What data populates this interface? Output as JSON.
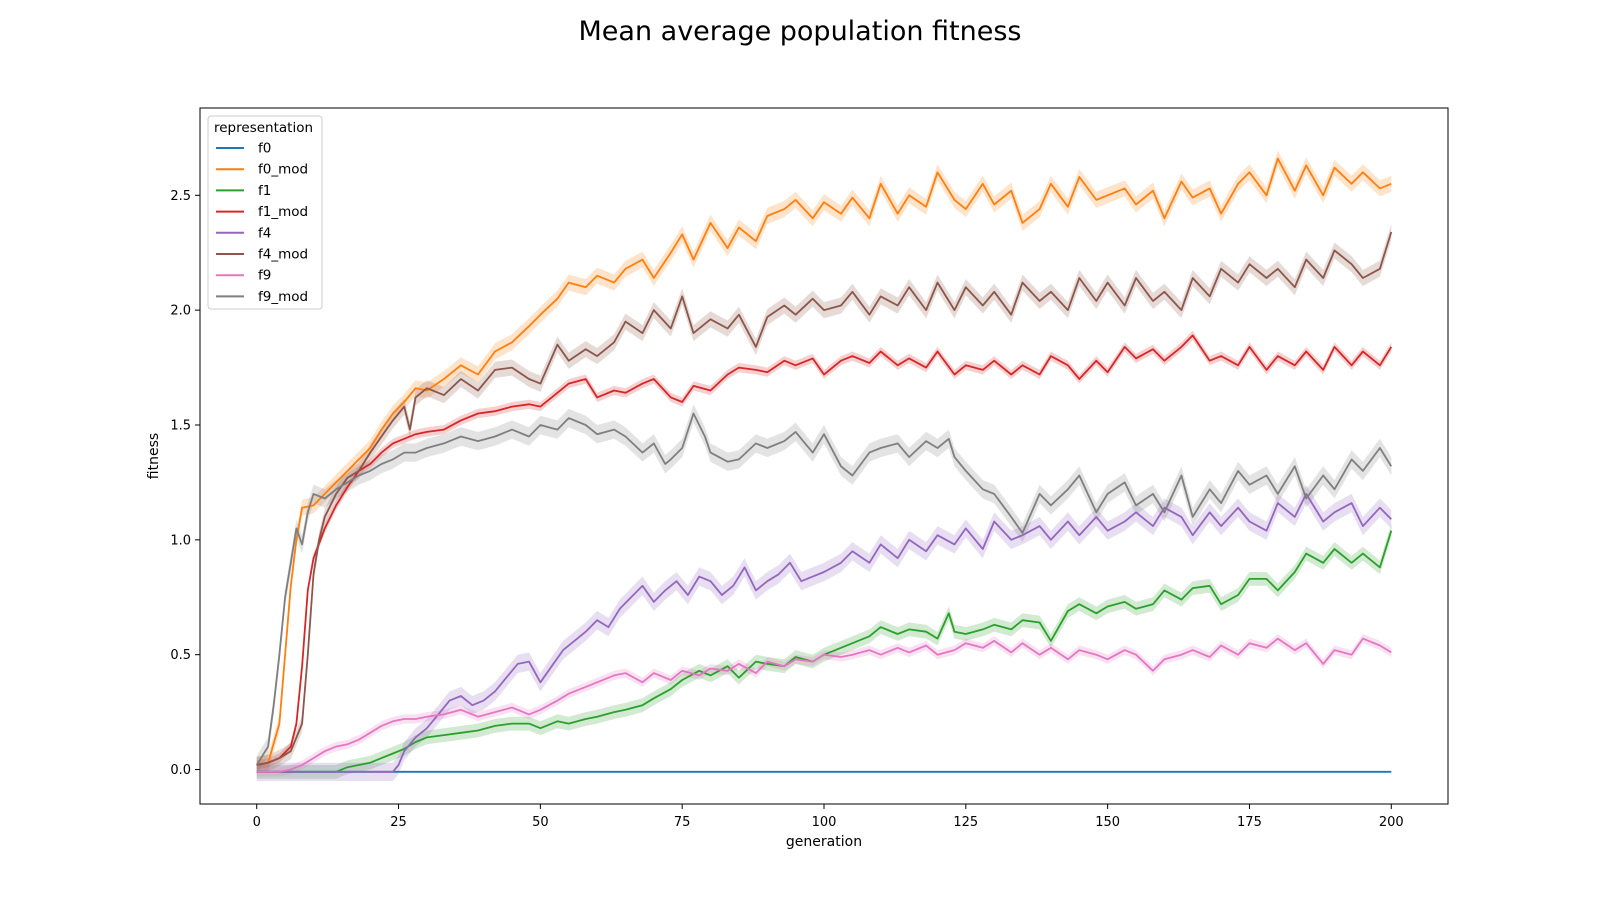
{
  "chart_data": {
    "type": "line",
    "title": "Mean average population fitness",
    "xlabel": "generation",
    "ylabel": "fitness",
    "xlim": [
      -10,
      210
    ],
    "ylim": [
      -0.15,
      2.88
    ],
    "xticks": [
      0,
      25,
      50,
      75,
      100,
      125,
      150,
      175,
      200
    ],
    "yticks": [
      0.0,
      0.5,
      1.0,
      1.5,
      2.0,
      2.5
    ],
    "xtick_labels": [
      "0",
      "25",
      "50",
      "75",
      "100",
      "125",
      "150",
      "175",
      "200"
    ],
    "ytick_labels": [
      "0.0",
      "0.5",
      "1.0",
      "1.5",
      "2.0",
      "2.5"
    ],
    "grid": false,
    "legend": {
      "title": "representation",
      "placement": "top-left"
    },
    "series": [
      {
        "name": "f0",
        "color": "#1f77b4",
        "band": 0.0,
        "x": [
          0,
          200
        ],
        "y": [
          -0.01,
          -0.01
        ]
      },
      {
        "name": "f0_mod",
        "color": "#ff7f0e",
        "band": 0.035,
        "x": [
          0,
          2,
          4,
          6,
          7,
          8,
          10,
          12,
          14,
          16,
          18,
          20,
          22,
          24,
          26,
          28,
          30,
          33,
          36,
          39,
          42,
          45,
          48,
          50,
          53,
          55,
          58,
          60,
          63,
          65,
          68,
          70,
          73,
          75,
          77,
          80,
          83,
          85,
          88,
          90,
          93,
          95,
          98,
          100,
          103,
          105,
          108,
          110,
          113,
          115,
          118,
          120,
          123,
          125,
          128,
          130,
          133,
          135,
          138,
          140,
          143,
          145,
          148,
          150,
          153,
          155,
          158,
          160,
          163,
          165,
          168,
          170,
          173,
          175,
          178,
          180,
          183,
          185,
          188,
          190,
          193,
          195,
          198,
          200
        ],
        "y": [
          0.02,
          0.03,
          0.2,
          0.8,
          1.0,
          1.14,
          1.15,
          1.2,
          1.25,
          1.3,
          1.35,
          1.4,
          1.48,
          1.55,
          1.6,
          1.66,
          1.65,
          1.7,
          1.76,
          1.72,
          1.82,
          1.86,
          1.93,
          1.98,
          2.05,
          2.12,
          2.1,
          2.15,
          2.12,
          2.18,
          2.22,
          2.14,
          2.25,
          2.33,
          2.22,
          2.38,
          2.27,
          2.36,
          2.3,
          2.41,
          2.44,
          2.48,
          2.4,
          2.47,
          2.42,
          2.49,
          2.4,
          2.55,
          2.42,
          2.5,
          2.45,
          2.6,
          2.48,
          2.44,
          2.55,
          2.46,
          2.52,
          2.38,
          2.44,
          2.55,
          2.45,
          2.58,
          2.48,
          2.5,
          2.53,
          2.46,
          2.52,
          2.4,
          2.56,
          2.49,
          2.53,
          2.42,
          2.55,
          2.6,
          2.5,
          2.66,
          2.52,
          2.63,
          2.5,
          2.62,
          2.55,
          2.6,
          2.53,
          2.55
        ]
      },
      {
        "name": "f1",
        "color": "#2ca02c",
        "band": 0.03,
        "x": [
          0,
          10,
          14,
          16,
          18,
          20,
          22,
          24,
          26,
          28,
          30,
          33,
          36,
          39,
          42,
          45,
          48,
          50,
          53,
          55,
          58,
          60,
          63,
          65,
          68,
          70,
          73,
          75,
          78,
          80,
          83,
          85,
          88,
          90,
          93,
          95,
          98,
          100,
          103,
          105,
          108,
          110,
          113,
          115,
          118,
          120,
          122,
          123,
          125,
          128,
          130,
          133,
          135,
          138,
          140,
          143,
          145,
          148,
          150,
          153,
          155,
          158,
          160,
          163,
          165,
          168,
          170,
          173,
          175,
          178,
          180,
          183,
          185,
          188,
          190,
          193,
          195,
          198,
          200
        ],
        "y": [
          -0.01,
          -0.01,
          -0.01,
          0.01,
          0.02,
          0.03,
          0.05,
          0.07,
          0.09,
          0.12,
          0.14,
          0.15,
          0.16,
          0.17,
          0.19,
          0.2,
          0.2,
          0.18,
          0.21,
          0.2,
          0.22,
          0.23,
          0.25,
          0.26,
          0.28,
          0.31,
          0.35,
          0.39,
          0.43,
          0.41,
          0.45,
          0.4,
          0.47,
          0.46,
          0.45,
          0.49,
          0.47,
          0.5,
          0.53,
          0.55,
          0.58,
          0.62,
          0.59,
          0.61,
          0.6,
          0.57,
          0.68,
          0.6,
          0.59,
          0.61,
          0.63,
          0.61,
          0.65,
          0.64,
          0.56,
          0.69,
          0.72,
          0.68,
          0.71,
          0.73,
          0.7,
          0.72,
          0.78,
          0.74,
          0.79,
          0.8,
          0.72,
          0.76,
          0.83,
          0.83,
          0.78,
          0.86,
          0.94,
          0.9,
          0.96,
          0.9,
          0.94,
          0.88,
          1.04
        ]
      },
      {
        "name": "f1_mod",
        "color": "#d62728",
        "band": 0.02,
        "x": [
          0,
          2,
          4,
          6,
          7,
          8,
          9,
          10,
          12,
          14,
          16,
          18,
          20,
          22,
          24,
          26,
          28,
          30,
          33,
          36,
          39,
          42,
          45,
          48,
          50,
          53,
          55,
          58,
          60,
          63,
          65,
          68,
          70,
          73,
          75,
          77,
          80,
          83,
          85,
          88,
          90,
          93,
          95,
          98,
          100,
          103,
          105,
          108,
          110,
          113,
          115,
          118,
          120,
          123,
          125,
          128,
          130,
          133,
          135,
          138,
          140,
          143,
          145,
          148,
          150,
          153,
          155,
          158,
          160,
          163,
          165,
          168,
          170,
          173,
          175,
          178,
          180,
          183,
          185,
          188,
          190,
          193,
          195,
          198,
          200
        ],
        "y": [
          0.02,
          0.03,
          0.05,
          0.1,
          0.2,
          0.45,
          0.78,
          0.92,
          1.05,
          1.15,
          1.23,
          1.3,
          1.33,
          1.38,
          1.42,
          1.44,
          1.46,
          1.47,
          1.48,
          1.52,
          1.55,
          1.56,
          1.58,
          1.59,
          1.58,
          1.64,
          1.68,
          1.7,
          1.62,
          1.65,
          1.64,
          1.68,
          1.7,
          1.62,
          1.6,
          1.67,
          1.65,
          1.72,
          1.75,
          1.74,
          1.73,
          1.78,
          1.76,
          1.79,
          1.72,
          1.78,
          1.8,
          1.77,
          1.82,
          1.76,
          1.79,
          1.75,
          1.82,
          1.72,
          1.76,
          1.74,
          1.78,
          1.72,
          1.76,
          1.72,
          1.8,
          1.76,
          1.7,
          1.78,
          1.73,
          1.84,
          1.79,
          1.83,
          1.78,
          1.84,
          1.89,
          1.78,
          1.8,
          1.76,
          1.84,
          1.74,
          1.8,
          1.76,
          1.82,
          1.74,
          1.84,
          1.76,
          1.82,
          1.76,
          1.84
        ]
      },
      {
        "name": "f4",
        "color": "#9467bd",
        "band": 0.04,
        "x": [
          0,
          24,
          25,
          26,
          28,
          30,
          32,
          34,
          36,
          38,
          40,
          42,
          44,
          46,
          48,
          50,
          52,
          54,
          56,
          58,
          60,
          62,
          64,
          66,
          68,
          70,
          72,
          74,
          76,
          78,
          80,
          82,
          84,
          86,
          88,
          90,
          92,
          94,
          96,
          98,
          100,
          103,
          105,
          108,
          110,
          113,
          115,
          118,
          120,
          123,
          125,
          128,
          130,
          133,
          135,
          138,
          140,
          143,
          145,
          148,
          150,
          153,
          155,
          158,
          160,
          163,
          165,
          168,
          170,
          173,
          175,
          178,
          180,
          183,
          185,
          188,
          190,
          193,
          195,
          198,
          200
        ],
        "y": [
          -0.01,
          -0.01,
          0.02,
          0.08,
          0.14,
          0.18,
          0.24,
          0.3,
          0.32,
          0.28,
          0.3,
          0.34,
          0.4,
          0.46,
          0.47,
          0.38,
          0.45,
          0.52,
          0.56,
          0.6,
          0.65,
          0.62,
          0.7,
          0.75,
          0.8,
          0.73,
          0.78,
          0.82,
          0.76,
          0.84,
          0.82,
          0.76,
          0.8,
          0.88,
          0.78,
          0.82,
          0.85,
          0.9,
          0.82,
          0.84,
          0.86,
          0.9,
          0.95,
          0.9,
          0.98,
          0.92,
          1.0,
          0.95,
          1.02,
          0.98,
          1.05,
          0.96,
          1.08,
          1.0,
          1.02,
          1.06,
          1.0,
          1.08,
          1.02,
          1.1,
          1.04,
          1.08,
          1.12,
          1.06,
          1.14,
          1.1,
          1.02,
          1.12,
          1.06,
          1.14,
          1.08,
          1.04,
          1.16,
          1.1,
          1.2,
          1.08,
          1.12,
          1.16,
          1.06,
          1.14,
          1.09
        ]
      },
      {
        "name": "f4_mod",
        "color": "#8c564b",
        "band": 0.035,
        "x": [
          0,
          2,
          4,
          6,
          8,
          9,
          10,
          11,
          12,
          14,
          16,
          18,
          20,
          22,
          24,
          26,
          27,
          28,
          30,
          33,
          36,
          39,
          42,
          45,
          48,
          50,
          53,
          55,
          58,
          60,
          63,
          65,
          68,
          70,
          73,
          75,
          77,
          80,
          83,
          85,
          88,
          90,
          93,
          95,
          98,
          100,
          103,
          105,
          108,
          110,
          113,
          115,
          118,
          120,
          123,
          125,
          128,
          130,
          133,
          135,
          138,
          140,
          143,
          145,
          148,
          150,
          153,
          155,
          158,
          160,
          163,
          165,
          168,
          170,
          173,
          175,
          178,
          180,
          183,
          185,
          188,
          190,
          193,
          195,
          198,
          200
        ],
        "y": [
          0.02,
          0.03,
          0.05,
          0.08,
          0.2,
          0.5,
          0.85,
          1.0,
          1.1,
          1.2,
          1.27,
          1.3,
          1.38,
          1.45,
          1.52,
          1.58,
          1.48,
          1.62,
          1.66,
          1.63,
          1.7,
          1.65,
          1.74,
          1.75,
          1.7,
          1.68,
          1.85,
          1.78,
          1.83,
          1.8,
          1.86,
          1.95,
          1.9,
          2.0,
          1.92,
          2.06,
          1.9,
          1.96,
          1.92,
          1.98,
          1.84,
          1.97,
          2.02,
          1.98,
          2.05,
          2.0,
          2.02,
          2.08,
          1.98,
          2.06,
          2.02,
          2.1,
          2.0,
          2.12,
          2.0,
          2.1,
          2.02,
          2.08,
          1.98,
          2.12,
          2.04,
          2.08,
          2.0,
          2.14,
          2.04,
          2.12,
          2.02,
          2.14,
          2.04,
          2.08,
          2.0,
          2.14,
          2.06,
          2.18,
          2.12,
          2.2,
          2.14,
          2.18,
          2.1,
          2.22,
          2.14,
          2.26,
          2.2,
          2.14,
          2.18,
          2.34
        ]
      },
      {
        "name": "f9",
        "color": "#e377c2",
        "band": 0.02,
        "x": [
          0,
          4,
          6,
          8,
          10,
          12,
          14,
          16,
          18,
          20,
          22,
          24,
          26,
          28,
          30,
          33,
          36,
          39,
          42,
          45,
          48,
          50,
          53,
          55,
          58,
          60,
          63,
          65,
          68,
          70,
          73,
          75,
          78,
          80,
          83,
          85,
          88,
          90,
          93,
          95,
          98,
          100,
          103,
          105,
          108,
          110,
          113,
          115,
          118,
          120,
          123,
          125,
          128,
          130,
          133,
          135,
          138,
          140,
          143,
          145,
          148,
          150,
          153,
          155,
          158,
          160,
          163,
          165,
          168,
          170,
          173,
          175,
          178,
          180,
          183,
          185,
          188,
          190,
          193,
          195,
          198,
          200
        ],
        "y": [
          -0.01,
          -0.01,
          0.0,
          0.02,
          0.05,
          0.08,
          0.1,
          0.11,
          0.13,
          0.16,
          0.19,
          0.21,
          0.22,
          0.22,
          0.23,
          0.24,
          0.26,
          0.23,
          0.25,
          0.27,
          0.24,
          0.26,
          0.3,
          0.33,
          0.36,
          0.38,
          0.41,
          0.42,
          0.38,
          0.42,
          0.39,
          0.43,
          0.41,
          0.44,
          0.43,
          0.46,
          0.42,
          0.47,
          0.45,
          0.48,
          0.47,
          0.5,
          0.49,
          0.5,
          0.52,
          0.5,
          0.53,
          0.51,
          0.54,
          0.5,
          0.52,
          0.55,
          0.53,
          0.56,
          0.51,
          0.55,
          0.5,
          0.53,
          0.48,
          0.52,
          0.5,
          0.48,
          0.52,
          0.5,
          0.43,
          0.48,
          0.5,
          0.52,
          0.49,
          0.54,
          0.5,
          0.55,
          0.53,
          0.57,
          0.52,
          0.55,
          0.46,
          0.52,
          0.5,
          0.57,
          0.54,
          0.51
        ]
      },
      {
        "name": "f9_mod",
        "color": "#7f7f7f",
        "band": 0.04,
        "x": [
          0,
          2,
          3,
          4,
          5,
          6,
          7,
          8,
          9,
          10,
          12,
          14,
          16,
          18,
          20,
          22,
          24,
          26,
          28,
          30,
          33,
          36,
          39,
          42,
          45,
          48,
          50,
          53,
          55,
          58,
          60,
          63,
          65,
          68,
          70,
          72,
          73,
          75,
          77,
          79,
          80,
          83,
          85,
          88,
          90,
          93,
          95,
          98,
          100,
          103,
          105,
          108,
          110,
          113,
          115,
          118,
          120,
          122,
          123,
          125,
          128,
          130,
          133,
          135,
          138,
          140,
          143,
          145,
          148,
          150,
          153,
          155,
          158,
          160,
          163,
          165,
          168,
          170,
          173,
          175,
          178,
          180,
          183,
          185,
          188,
          190,
          193,
          195,
          198,
          200
        ],
        "y": [
          0.02,
          0.1,
          0.28,
          0.5,
          0.75,
          0.9,
          1.05,
          0.98,
          1.12,
          1.2,
          1.18,
          1.22,
          1.25,
          1.28,
          1.3,
          1.33,
          1.35,
          1.38,
          1.38,
          1.4,
          1.42,
          1.45,
          1.43,
          1.45,
          1.48,
          1.45,
          1.5,
          1.48,
          1.53,
          1.5,
          1.46,
          1.48,
          1.45,
          1.38,
          1.42,
          1.33,
          1.35,
          1.4,
          1.55,
          1.45,
          1.38,
          1.34,
          1.35,
          1.42,
          1.4,
          1.43,
          1.47,
          1.38,
          1.46,
          1.32,
          1.28,
          1.38,
          1.4,
          1.42,
          1.36,
          1.43,
          1.4,
          1.44,
          1.36,
          1.3,
          1.22,
          1.2,
          1.1,
          1.03,
          1.2,
          1.15,
          1.22,
          1.28,
          1.12,
          1.2,
          1.25,
          1.15,
          1.2,
          1.12,
          1.28,
          1.1,
          1.22,
          1.16,
          1.3,
          1.24,
          1.28,
          1.2,
          1.32,
          1.18,
          1.28,
          1.22,
          1.35,
          1.3,
          1.4,
          1.32
        ]
      }
    ]
  }
}
